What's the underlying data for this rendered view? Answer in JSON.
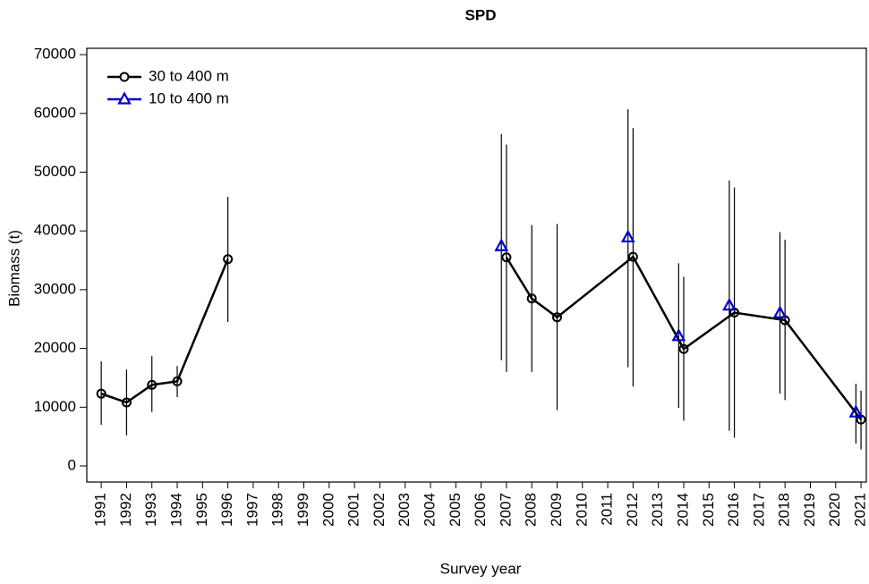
{
  "chart_data": {
    "type": "scatter",
    "title": "SPD",
    "x_label": "Survey year",
    "y_label": "Biomass (t)",
    "xlim": [
      1990.43,
      2021.21
    ],
    "ylim": [
      -2740,
      71080
    ],
    "xticks": [
      1991,
      1992,
      1993,
      1994,
      1995,
      1996,
      1997,
      1998,
      1999,
      2000,
      2001,
      2002,
      2003,
      2004,
      2005,
      2006,
      2007,
      2008,
      2009,
      2010,
      2011,
      2012,
      2013,
      2014,
      2015,
      2016,
      2017,
      2018,
      2019,
      2020,
      2021
    ],
    "yticks": [
      0,
      10000,
      20000,
      30000,
      40000,
      50000,
      60000,
      70000
    ],
    "legend": "top-left",
    "series": [
      {
        "name": "30 to 400 m",
        "color": "#000000",
        "marker": "circle",
        "line": true,
        "x": [
          1991,
          1992,
          1993,
          1994,
          1996,
          1997,
          2007,
          2008,
          2009,
          2012,
          2014,
          2016,
          2018,
          2021
        ],
        "values": [
          12300,
          10800,
          13800,
          14400,
          35200,
          null,
          35500,
          28500,
          25300,
          35600,
          19900,
          26100,
          24800,
          7900
        ],
        "lower": [
          7000,
          5200,
          9200,
          11700,
          24500,
          null,
          16000,
          16000,
          9500,
          13500,
          7700,
          4800,
          11200,
          2800
        ],
        "upper": [
          17800,
          16400,
          18700,
          17000,
          45800,
          null,
          54700,
          41000,
          41200,
          57500,
          32200,
          47400,
          38500,
          12800
        ]
      },
      {
        "name": "10 to 400 m",
        "color": "#0000cc",
        "marker": "triangle",
        "line": false,
        "x": [
          2006.8,
          2011.8,
          2013.8,
          2015.8,
          2017.8,
          2020.8
        ],
        "values": [
          37400,
          38900,
          22100,
          27300,
          26000,
          9100
        ],
        "lower": [
          18000,
          16800,
          9900,
          6000,
          12300,
          3800
        ],
        "upper": [
          56500,
          60700,
          34500,
          48600,
          39800,
          14000
        ]
      }
    ]
  }
}
